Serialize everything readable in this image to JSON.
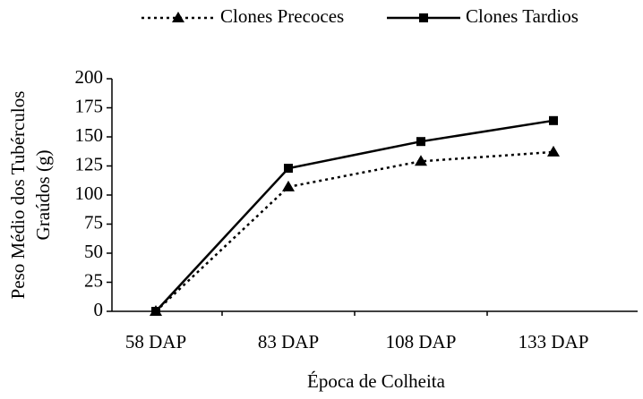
{
  "chart_data": {
    "type": "line",
    "x_label": "Época de Colheita",
    "y_label": [
      "Peso Médio dos Tubérculos",
      "Graúdos (g)"
    ],
    "categories": [
      "58 DAP",
      "83 DAP",
      "108 DAP",
      "133 DAP"
    ],
    "series": [
      {
        "name": "Clones Precoces",
        "color": "#000000",
        "dash": "dotted",
        "marker": "triangle",
        "values": [
          0,
          107,
          129,
          137
        ]
      },
      {
        "name": "Clones Tardios",
        "color": "#000000",
        "dash": "solid",
        "marker": "square",
        "values": [
          0,
          123,
          146,
          164
        ]
      }
    ],
    "ylim": [
      0,
      200
    ],
    "yticks": [
      0,
      25,
      50,
      75,
      100,
      125,
      150,
      175,
      200
    ],
    "legend": "top"
  }
}
